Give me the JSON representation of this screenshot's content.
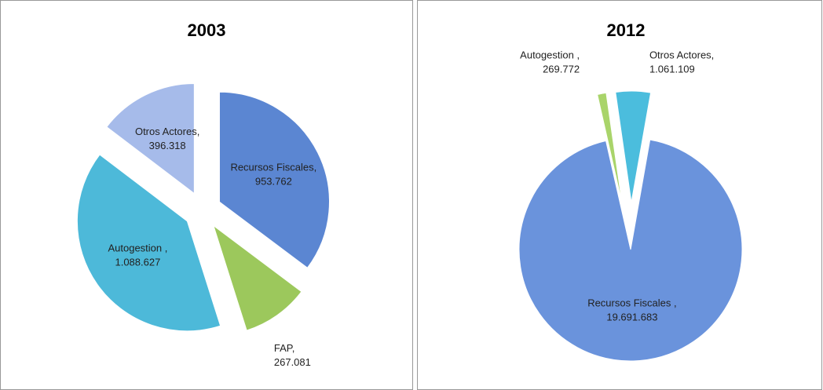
{
  "chart_data": [
    {
      "type": "pie",
      "title": "2003",
      "categories": [
        "Recursos Fiscales,",
        "FAP,",
        "Autogestion ,",
        "Otros Actores,"
      ],
      "values": [
        953762,
        267081,
        1088627,
        396318
      ],
      "value_labels": [
        "953.762",
        "267.081",
        "1.088.627",
        "396.318"
      ],
      "colors": [
        "#5b86d2",
        "#9cc85c",
        "#4db9d9",
        "#a6bbea"
      ]
    },
    {
      "type": "pie",
      "title": "2012",
      "categories": [
        "Recursos Fiscales ,",
        "Autogestion ,",
        "Otros Actores,"
      ],
      "values": [
        19691683,
        269772,
        1061109
      ],
      "value_labels": [
        "19.691.683",
        "269.772",
        "1.061.109"
      ],
      "colors": [
        "#6a93dc",
        "#a9d46a",
        "#4bbddd"
      ]
    }
  ]
}
